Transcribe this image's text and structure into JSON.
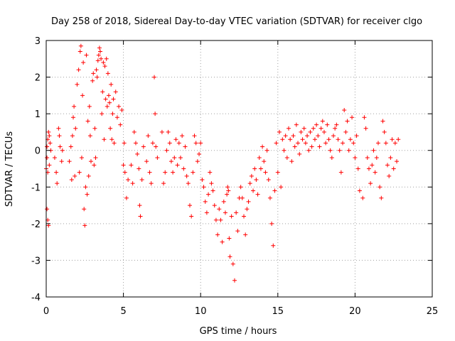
{
  "chart_data": {
    "type": "scatter",
    "title": "Day 258 of 2018, Sidereal Day-to-day VTEC variation (SDTVAR) for receiver clgo",
    "xlabel": "GPS time / hours",
    "ylabel": "SDTVAR / TECUs",
    "xlim": [
      0,
      25
    ],
    "ylim": [
      -4,
      3
    ],
    "xticks": [
      0,
      5,
      10,
      15,
      20,
      25
    ],
    "yticks": [
      -4,
      -3,
      -2,
      -1,
      0,
      1,
      2,
      3
    ],
    "xtick_labels": [
      "0",
      "5",
      "10",
      "15",
      "20",
      "25"
    ],
    "ytick_labels": [
      "-4",
      "-3",
      "-2",
      "-1",
      "0",
      "1",
      "2",
      "3"
    ],
    "grid": true,
    "marker": "+",
    "color": "#ff0000",
    "series": [
      {
        "name": "SDTVAR",
        "x": [
          0.0,
          0.05,
          0.1,
          0.15,
          0.2,
          0.25,
          0.05,
          0.1,
          0.15,
          0.05,
          0.1,
          0.2,
          0.3,
          0.55,
          0.65,
          0.7,
          0.8,
          0.85,
          0.9,
          1.0,
          1.05,
          1.5,
          1.6,
          1.65,
          1.7,
          1.75,
          1.8,
          1.85,
          1.9,
          2.0,
          2.1,
          2.15,
          2.2,
          2.25,
          2.3,
          2.35,
          2.4,
          2.45,
          2.5,
          2.55,
          2.6,
          2.65,
          2.7,
          2.75,
          2.8,
          2.85,
          2.9,
          3.0,
          3.05,
          3.1,
          3.15,
          3.2,
          3.25,
          3.3,
          3.35,
          3.4,
          3.45,
          3.5,
          3.55,
          3.6,
          3.65,
          3.7,
          3.75,
          3.8,
          3.85,
          3.9,
          3.95,
          4.0,
          4.05,
          4.1,
          4.15,
          4.2,
          4.25,
          4.3,
          4.35,
          4.4,
          4.5,
          4.6,
          4.7,
          4.8,
          4.9,
          5.0,
          5.05,
          5.1,
          5.2,
          5.3,
          5.5,
          5.6,
          5.7,
          5.8,
          5.9,
          6.0,
          6.05,
          6.1,
          6.2,
          6.3,
          6.5,
          6.6,
          6.7,
          6.8,
          6.9,
          7.0,
          7.05,
          7.1,
          7.2,
          7.5,
          7.6,
          7.7,
          7.8,
          7.9,
          8.0,
          8.1,
          8.2,
          8.3,
          8.4,
          8.5,
          8.6,
          8.7,
          8.8,
          8.9,
          9.0,
          9.1,
          9.2,
          9.3,
          9.4,
          9.5,
          9.6,
          9.7,
          9.8,
          9.9,
          10.0,
          10.1,
          10.2,
          10.3,
          10.4,
          10.5,
          10.6,
          10.7,
          10.8,
          10.9,
          11.0,
          11.1,
          11.2,
          11.3,
          11.4,
          11.5,
          11.6,
          11.7,
          11.75,
          11.8,
          11.85,
          11.9,
          12.0,
          12.1,
          12.2,
          12.3,
          12.4,
          12.5,
          12.6,
          12.7,
          12.8,
          12.9,
          13.0,
          13.1,
          13.2,
          13.3,
          13.4,
          13.5,
          13.6,
          13.7,
          13.8,
          13.9,
          14.0,
          14.1,
          14.2,
          14.3,
          14.4,
          14.5,
          14.6,
          14.7,
          14.8,
          14.9,
          15.0,
          15.1,
          15.2,
          15.3,
          15.4,
          15.5,
          15.6,
          15.7,
          15.8,
          15.9,
          16.0,
          16.1,
          16.2,
          16.3,
          16.4,
          16.5,
          16.6,
          16.7,
          16.8,
          16.9,
          17.0,
          17.1,
          17.2,
          17.3,
          17.4,
          17.5,
          17.6,
          17.7,
          17.8,
          17.9,
          18.0,
          18.1,
          18.2,
          18.3,
          18.4,
          18.5,
          18.6,
          18.7,
          18.8,
          18.9,
          19.0,
          19.1,
          19.2,
          19.3,
          19.4,
          19.5,
          19.6,
          19.7,
          19.8,
          19.9,
          20.0,
          20.1,
          20.2,
          20.3,
          20.5,
          20.6,
          20.7,
          20.8,
          20.9,
          21.0,
          21.1,
          21.2,
          21.3,
          21.4,
          21.5,
          21.6,
          21.7,
          21.8,
          21.9,
          22.0,
          22.1,
          22.2,
          22.3,
          22.4,
          22.5,
          22.6,
          22.7,
          22.8
        ],
        "y": [
          -0.5,
          -0.2,
          0.3,
          0.5,
          -0.4,
          0.2,
          -1.6,
          -1.9,
          -2.05,
          0.1,
          -0.6,
          0.4,
          0.0,
          -0.2,
          -0.6,
          -0.9,
          0.6,
          0.4,
          0.1,
          -0.3,
          0.0,
          -0.3,
          0.1,
          -0.8,
          0.4,
          0.9,
          1.2,
          -0.7,
          0.6,
          1.8,
          2.2,
          -0.6,
          2.7,
          2.85,
          -0.2,
          1.5,
          2.4,
          -1.6,
          -2.05,
          -1.0,
          2.6,
          -1.2,
          0.8,
          -0.7,
          1.2,
          0.4,
          -0.3,
          1.9,
          2.1,
          -0.4,
          0.6,
          -0.2,
          2.2,
          2.0,
          2.45,
          2.6,
          2.8,
          2.7,
          2.5,
          1.0,
          1.6,
          2.4,
          0.3,
          2.3,
          1.4,
          2.5,
          1.2,
          2.1,
          1.5,
          1.3,
          0.6,
          1.8,
          0.3,
          1.0,
          1.4,
          0.2,
          1.6,
          0.9,
          1.2,
          0.7,
          1.1,
          -0.4,
          0.2,
          -0.6,
          -1.3,
          -0.8,
          -0.4,
          -0.9,
          0.5,
          0.2,
          -0.1,
          -0.5,
          -1.5,
          -1.8,
          -0.8,
          0.1,
          -0.3,
          0.4,
          -0.6,
          -0.9,
          0.2,
          2.0,
          1.0,
          0.1,
          -0.2,
          0.5,
          -0.9,
          -0.6,
          0.0,
          0.5,
          0.2,
          -0.3,
          -0.6,
          -0.2,
          0.3,
          -0.4,
          0.2,
          -0.2,
          0.4,
          -0.5,
          0.1,
          -0.7,
          -0.9,
          -1.5,
          -1.8,
          -0.6,
          0.4,
          0.2,
          -0.3,
          -0.1,
          0.2,
          -0.8,
          -1.0,
          -1.4,
          -1.7,
          -1.2,
          -0.6,
          -0.9,
          -1.1,
          -1.5,
          -1.9,
          -2.3,
          -1.6,
          -1.9,
          -2.5,
          -1.4,
          -1.7,
          -1.2,
          -1.0,
          -1.1,
          -2.4,
          -2.9,
          -1.8,
          -3.1,
          -3.55,
          -1.7,
          -2.2,
          -1.3,
          -1.0,
          -1.3,
          -1.8,
          -2.3,
          -1.6,
          -1.4,
          -0.9,
          -0.7,
          -1.1,
          -0.5,
          -0.8,
          -1.2,
          -0.2,
          -0.5,
          0.1,
          -0.3,
          -0.6,
          0.0,
          -0.8,
          -1.3,
          -2.0,
          -2.6,
          -1.1,
          0.2,
          -0.6,
          0.5,
          -1.0,
          0.3,
          0.0,
          0.4,
          -0.2,
          0.6,
          0.3,
          -0.3,
          0.4,
          0.1,
          0.7,
          0.2,
          -0.1,
          0.5,
          0.3,
          0.6,
          0.2,
          0.4,
          0.0,
          0.5,
          0.1,
          0.6,
          0.3,
          0.7,
          0.4,
          0.1,
          0.6,
          0.8,
          0.5,
          0.2,
          0.7,
          0.3,
          0.0,
          -0.2,
          0.4,
          0.6,
          0.7,
          0.3,
          0.0,
          -0.6,
          0.2,
          1.1,
          0.5,
          0.8,
          0.0,
          0.3,
          0.9,
          0.2,
          -0.2,
          0.4,
          -0.5,
          -1.1,
          -1.3,
          0.9,
          0.6,
          -0.2,
          -0.5,
          -0.9,
          -0.4,
          0.0,
          -0.6,
          -0.2,
          0.2,
          -1.0,
          -1.3,
          0.8,
          0.5,
          0.2,
          -0.4,
          -0.7,
          -0.2,
          0.3,
          -0.5,
          0.2,
          -0.3,
          0.3
        ]
      }
    ]
  }
}
